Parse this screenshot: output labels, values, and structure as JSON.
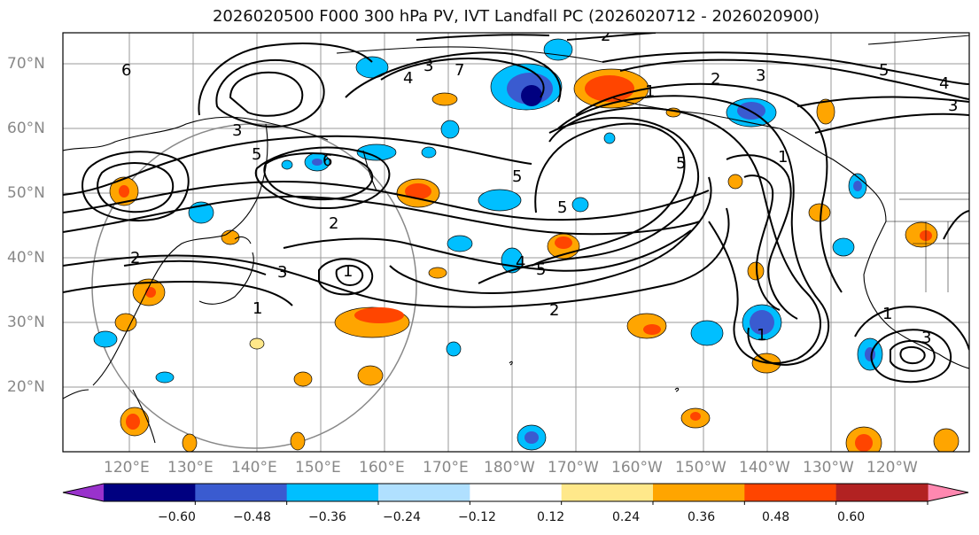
{
  "title": "2026020500 F000 300 hPa PV, IVT Landfall PC (2026020712 - 2026020900)",
  "lat_labels": [
    "70°N",
    "60°N",
    "50°N",
    "40°N",
    "30°N",
    "20°N"
  ],
  "lon_labels": [
    "120°E",
    "130°E",
    "140°E",
    "150°E",
    "160°E",
    "170°E",
    "180°W",
    "170°W",
    "160°W",
    "150°W",
    "140°W",
    "130°W",
    "120°W"
  ],
  "colorbar": {
    "colors": [
      "#9932cc",
      "#000080",
      "#3a5bd0",
      "#00bfff",
      "#b0e0ff",
      "#ffffff",
      "#ffe88a",
      "#ffa500",
      "#ff4500",
      "#b22222",
      "#ff88b0"
    ],
    "tick_labels": [
      "−0.60",
      "−0.48",
      "−0.36",
      "−0.24",
      "−0.12",
      "0.12",
      "0.24",
      "0.36",
      "0.48",
      "0.60"
    ]
  },
  "contour_labels": [
    "2",
    "3",
    "5",
    "6",
    "2",
    "3",
    "1",
    "2",
    "5",
    "4",
    "5",
    "1",
    "2",
    "3",
    "1",
    "1",
    "3",
    "4",
    "5",
    "6",
    "7",
    "5",
    "1",
    "2",
    "3",
    "1",
    "5",
    "3",
    "4"
  ]
}
